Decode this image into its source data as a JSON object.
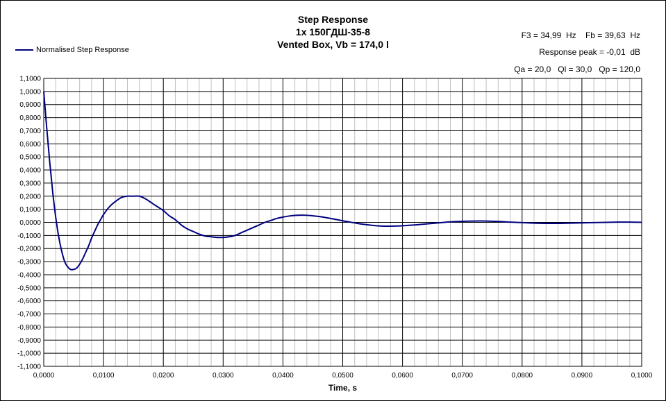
{
  "chart_data": {
    "type": "line",
    "title_lines": [
      "Step Response",
      "1x 150ГДШ-35-8",
      "Vented Box, Vb = 174,0 l"
    ],
    "xlabel": "Time, s",
    "ylabel": "",
    "xlim": [
      0,
      0.1
    ],
    "ylim": [
      -1.1,
      1.1
    ],
    "x_ticks": [
      "0,0000",
      "0,0100",
      "0,0200",
      "0,0300",
      "0,0400",
      "0,0500",
      "0,0600",
      "0,0700",
      "0,0800",
      "0,0900",
      "0,1000"
    ],
    "y_ticks": [
      "1,1000",
      "1,0000",
      "0,9000",
      "0,8000",
      "0,7000",
      "0,6000",
      "0,5000",
      "0,4000",
      "0,3000",
      "0,2000",
      "0,1000",
      "0,0000",
      "-0,1000",
      "-0,2000",
      "-0,3000",
      "-0,4000",
      "-0,5000",
      "-0,6000",
      "-0,7000",
      "-0,8000",
      "-0,9000",
      "-1,0000",
      "-1,1000"
    ],
    "grid": true,
    "legend_position": "top-left",
    "series": [
      {
        "name": "Normalised Step Response",
        "color": "#000080",
        "x": [
          0,
          0.0005,
          0.001,
          0.0015,
          0.002,
          0.0025,
          0.003,
          0.0035,
          0.004,
          0.0045,
          0.005,
          0.0055,
          0.006,
          0.0065,
          0.007,
          0.0075,
          0.008,
          0.0085,
          0.009,
          0.0095,
          0.01,
          0.011,
          0.012,
          0.013,
          0.014,
          0.015,
          0.016,
          0.017,
          0.018,
          0.019,
          0.02,
          0.021,
          0.022,
          0.023,
          0.024,
          0.025,
          0.026,
          0.027,
          0.028,
          0.029,
          0.03,
          0.031,
          0.032,
          0.033,
          0.034,
          0.035,
          0.036,
          0.037,
          0.038,
          0.039,
          0.04,
          0.041,
          0.042,
          0.043,
          0.044,
          0.045,
          0.046,
          0.047,
          0.048,
          0.049,
          0.05,
          0.051,
          0.052,
          0.053,
          0.054,
          0.055,
          0.056,
          0.057,
          0.058,
          0.059,
          0.06,
          0.062,
          0.064,
          0.066,
          0.068,
          0.07,
          0.072,
          0.074,
          0.076,
          0.078,
          0.08,
          0.082,
          0.084,
          0.086,
          0.088,
          0.09,
          0.092,
          0.094,
          0.096,
          0.098,
          0.1
        ],
        "y": [
          1.0,
          0.72,
          0.46,
          0.23,
          0.04,
          -0.11,
          -0.22,
          -0.3,
          -0.34,
          -0.36,
          -0.36,
          -0.35,
          -0.32,
          -0.28,
          -0.23,
          -0.18,
          -0.12,
          -0.07,
          -0.02,
          0.02,
          0.06,
          0.12,
          0.16,
          0.19,
          0.2,
          0.2,
          0.2,
          0.18,
          0.15,
          0.12,
          0.09,
          0.05,
          0.02,
          -0.02,
          -0.05,
          -0.07,
          -0.09,
          -0.105,
          -0.11,
          -0.115,
          -0.115,
          -0.11,
          -0.1,
          -0.08,
          -0.06,
          -0.04,
          -0.02,
          0.0,
          0.015,
          0.03,
          0.04,
          0.048,
          0.053,
          0.055,
          0.054,
          0.05,
          0.045,
          0.038,
          0.03,
          0.021,
          0.012,
          0.004,
          -0.004,
          -0.012,
          -0.018,
          -0.023,
          -0.027,
          -0.029,
          -0.029,
          -0.028,
          -0.026,
          -0.02,
          -0.012,
          -0.004,
          0.004,
          0.008,
          0.01,
          0.01,
          0.007,
          0.002,
          -0.002,
          -0.006,
          -0.008,
          -0.008,
          -0.006,
          -0.004,
          -0.002,
          0.0,
          0.002,
          0.002,
          0.0
        ]
      }
    ]
  },
  "info": {
    "line1": "F3 = 34,99  Hz    Fb = 39,63  Hz",
    "line2": "Response peak = -0,01  dB",
    "line3": "Qa = 20,0   Ql = 30,0   Qp = 120,0"
  }
}
